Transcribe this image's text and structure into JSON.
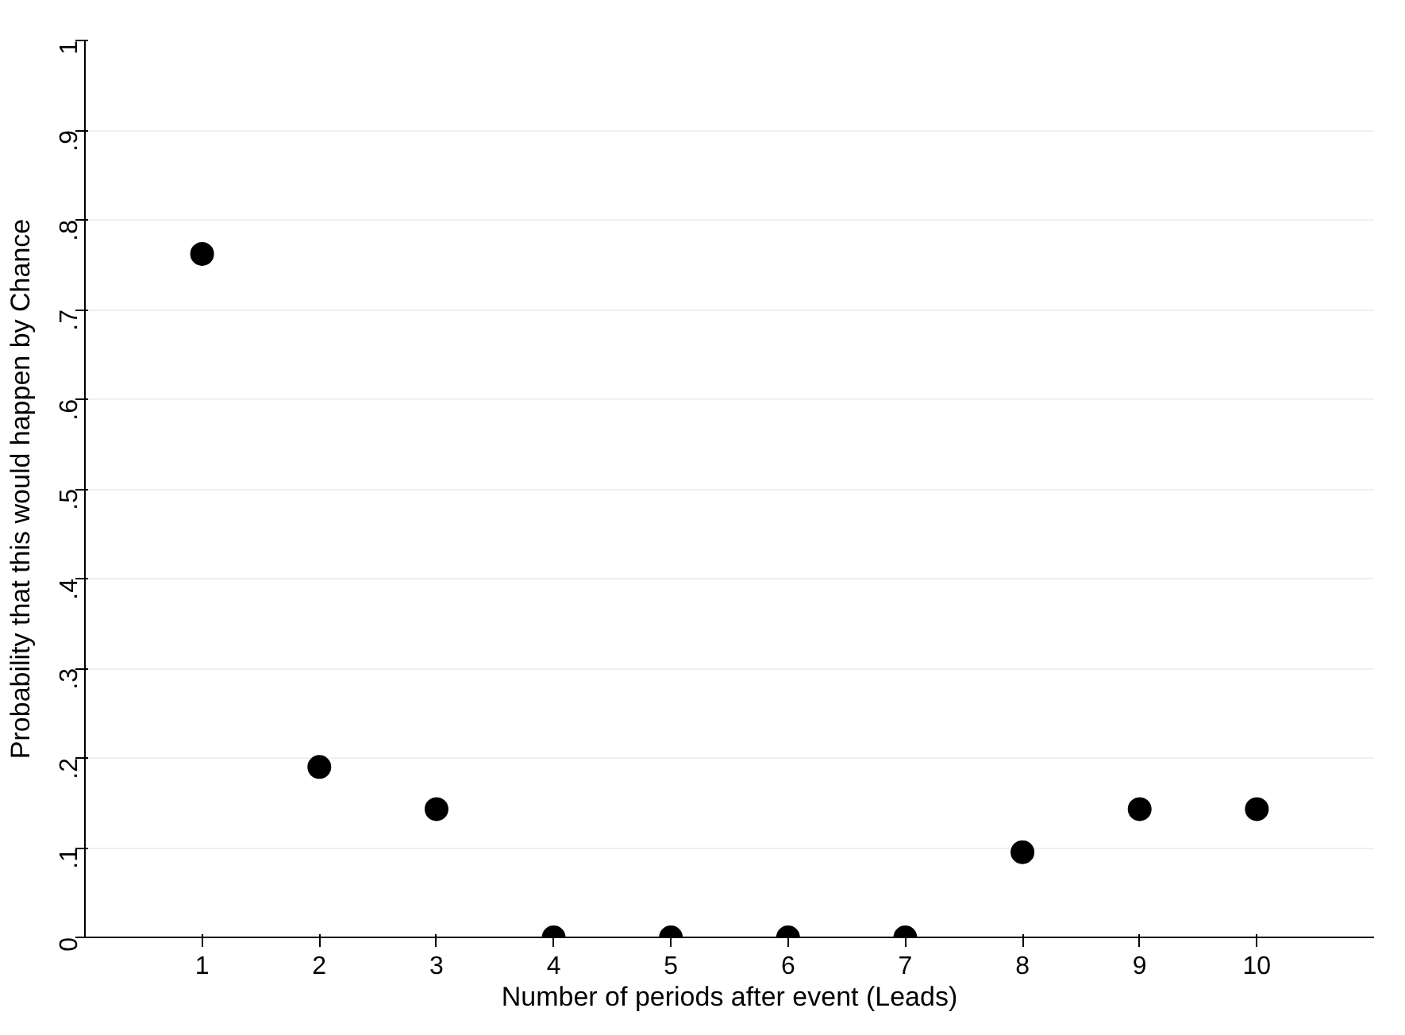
{
  "chart_data": {
    "type": "scatter",
    "xlabel": "Number of periods after event (Leads)",
    "ylabel": "Probability that this would happen by Chance",
    "x": [
      1,
      2,
      3,
      4,
      5,
      6,
      7,
      8,
      9,
      10
    ],
    "values": [
      0.762,
      0.19,
      0.143,
      0,
      0,
      0,
      0,
      0.095,
      0.143,
      0.143
    ],
    "color": "#000000",
    "marker": "circle",
    "xlim": [
      0,
      11
    ],
    "xticks": [
      1,
      2,
      3,
      4,
      5,
      6,
      7,
      8,
      9,
      10
    ],
    "ylim": [
      0,
      1
    ],
    "yticks": [
      {
        "value": 0,
        "label": "0"
      },
      {
        "value": 0.1,
        "label": ".1"
      },
      {
        "value": 0.2,
        "label": ".2"
      },
      {
        "value": 0.3,
        "label": ".3"
      },
      {
        "value": 0.4,
        "label": ".4"
      },
      {
        "value": 0.5,
        "label": ".5"
      },
      {
        "value": 0.6,
        "label": ".6"
      },
      {
        "value": 0.7,
        "label": ".7"
      },
      {
        "value": 0.8,
        "label": ".8"
      },
      {
        "value": 0.9,
        "label": ".9"
      },
      {
        "value": 1,
        "label": "1"
      }
    ],
    "grid": "y"
  }
}
